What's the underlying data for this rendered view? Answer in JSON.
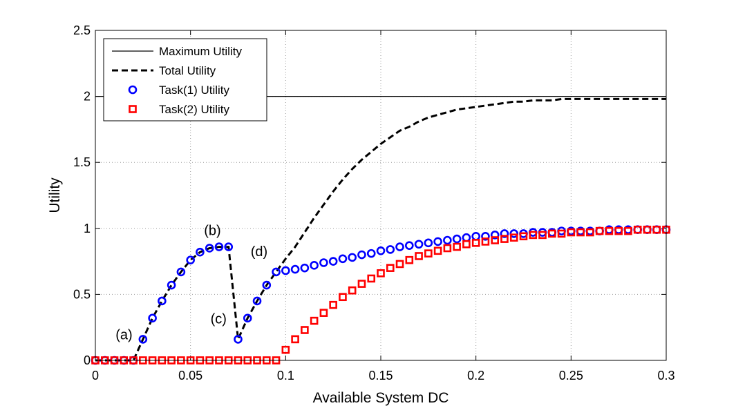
{
  "chart_data": {
    "type": "line",
    "title": "",
    "xlabel": "Available System DC",
    "ylabel": "Utility",
    "xlim": [
      0,
      0.3
    ],
    "ylim": [
      0,
      2.5
    ],
    "xticks": [
      0,
      0.05,
      0.1,
      0.15,
      0.2,
      0.25,
      0.3
    ],
    "yticks": [
      0,
      0.5,
      1,
      1.5,
      2,
      2.5
    ],
    "xtick_labels": [
      "0",
      "0.05",
      "0.1",
      "0.15",
      "0.2",
      "0.25",
      "0.3"
    ],
    "ytick_labels": [
      "0",
      "0.5",
      "1",
      "1.5",
      "2",
      "2.5"
    ],
    "grid": true,
    "legend_position": "top-left",
    "legend": [
      "Maximum Utility",
      "Total Utility",
      "Task(1) Utility",
      "Task(2) Utility"
    ],
    "colors": {
      "max": "#000000",
      "total": "#000000",
      "task1": "#0000ff",
      "task2": "#ff0000"
    },
    "x": [
      0,
      0.005,
      0.01,
      0.015,
      0.02,
      0.025,
      0.03,
      0.035,
      0.04,
      0.045,
      0.05,
      0.055,
      0.06,
      0.065,
      0.07,
      0.075,
      0.08,
      0.085,
      0.09,
      0.095,
      0.1,
      0.105,
      0.11,
      0.115,
      0.12,
      0.125,
      0.13,
      0.135,
      0.14,
      0.145,
      0.15,
      0.155,
      0.16,
      0.165,
      0.17,
      0.175,
      0.18,
      0.185,
      0.19,
      0.195,
      0.2,
      0.205,
      0.21,
      0.215,
      0.22,
      0.225,
      0.23,
      0.235,
      0.24,
      0.245,
      0.25,
      0.255,
      0.26,
      0.265,
      0.27,
      0.275,
      0.28,
      0.285,
      0.29,
      0.295,
      0.3
    ],
    "series": [
      {
        "name": "Maximum Utility",
        "style": "solid",
        "x": [
          0,
          0.3
        ],
        "values": [
          2,
          2
        ]
      },
      {
        "name": "Total Utility",
        "style": "dashed",
        "x": [
          0,
          0.005,
          0.01,
          0.015,
          0.02,
          0.025,
          0.03,
          0.035,
          0.04,
          0.045,
          0.05,
          0.055,
          0.06,
          0.065,
          0.07,
          0.075,
          0.08,
          0.085,
          0.09,
          0.095,
          0.1,
          0.105,
          0.11,
          0.115,
          0.12,
          0.125,
          0.13,
          0.135,
          0.14,
          0.145,
          0.15,
          0.155,
          0.16,
          0.165,
          0.17,
          0.175,
          0.18,
          0.185,
          0.19,
          0.195,
          0.2,
          0.205,
          0.21,
          0.215,
          0.22,
          0.225,
          0.23,
          0.235,
          0.24,
          0.245,
          0.25,
          0.255,
          0.26,
          0.265,
          0.27,
          0.275,
          0.28,
          0.285,
          0.29,
          0.295,
          0.3
        ],
        "values": [
          0,
          0,
          0,
          0,
          0,
          0.16,
          0.32,
          0.45,
          0.57,
          0.67,
          0.76,
          0.82,
          0.85,
          0.86,
          0.86,
          0.16,
          0.32,
          0.45,
          0.57,
          0.67,
          0.77,
          0.86,
          0.97,
          1.08,
          1.18,
          1.28,
          1.37,
          1.45,
          1.52,
          1.58,
          1.64,
          1.69,
          1.74,
          1.77,
          1.81,
          1.84,
          1.86,
          1.88,
          1.9,
          1.91,
          1.92,
          1.93,
          1.94,
          1.95,
          1.96,
          1.96,
          1.97,
          1.97,
          1.97,
          1.98,
          1.98,
          1.98,
          1.98,
          1.98,
          1.98,
          1.98,
          1.98,
          1.98,
          1.98,
          1.98,
          1.98
        ]
      },
      {
        "name": "Task(1) Utility",
        "style": "circle",
        "values": [
          0,
          0,
          0,
          0,
          0,
          0.16,
          0.32,
          0.45,
          0.57,
          0.67,
          0.76,
          0.82,
          0.85,
          0.86,
          0.86,
          0.16,
          0.32,
          0.45,
          0.57,
          0.67,
          0.68,
          0.69,
          0.7,
          0.72,
          0.74,
          0.75,
          0.77,
          0.78,
          0.8,
          0.81,
          0.83,
          0.84,
          0.86,
          0.87,
          0.88,
          0.89,
          0.9,
          0.91,
          0.92,
          0.93,
          0.94,
          0.94,
          0.95,
          0.96,
          0.96,
          0.96,
          0.97,
          0.97,
          0.97,
          0.98,
          0.98,
          0.98,
          0.98,
          0.98,
          0.99,
          0.99,
          0.99,
          0.99,
          0.99,
          0.99,
          0.99
        ]
      },
      {
        "name": "Task(2) Utility",
        "style": "square",
        "values": [
          0,
          0,
          0,
          0,
          0,
          0,
          0,
          0,
          0,
          0,
          0,
          0,
          0,
          0,
          0,
          0,
          0,
          0,
          0,
          0,
          0.08,
          0.16,
          0.23,
          0.3,
          0.36,
          0.42,
          0.48,
          0.53,
          0.58,
          0.62,
          0.66,
          0.7,
          0.73,
          0.76,
          0.79,
          0.81,
          0.83,
          0.85,
          0.86,
          0.88,
          0.89,
          0.9,
          0.91,
          0.92,
          0.93,
          0.94,
          0.95,
          0.95,
          0.96,
          0.96,
          0.97,
          0.97,
          0.97,
          0.98,
          0.98,
          0.98,
          0.98,
          0.99,
          0.99,
          0.99,
          0.99
        ]
      }
    ],
    "annotations": [
      {
        "text": "(a)",
        "x": 0.0195,
        "y": 0.16
      },
      {
        "text": "(b)",
        "x": 0.066,
        "y": 0.95
      },
      {
        "text": "(c)",
        "x": 0.069,
        "y": 0.28
      },
      {
        "text": "(d)",
        "x": 0.0905,
        "y": 0.79
      }
    ]
  }
}
